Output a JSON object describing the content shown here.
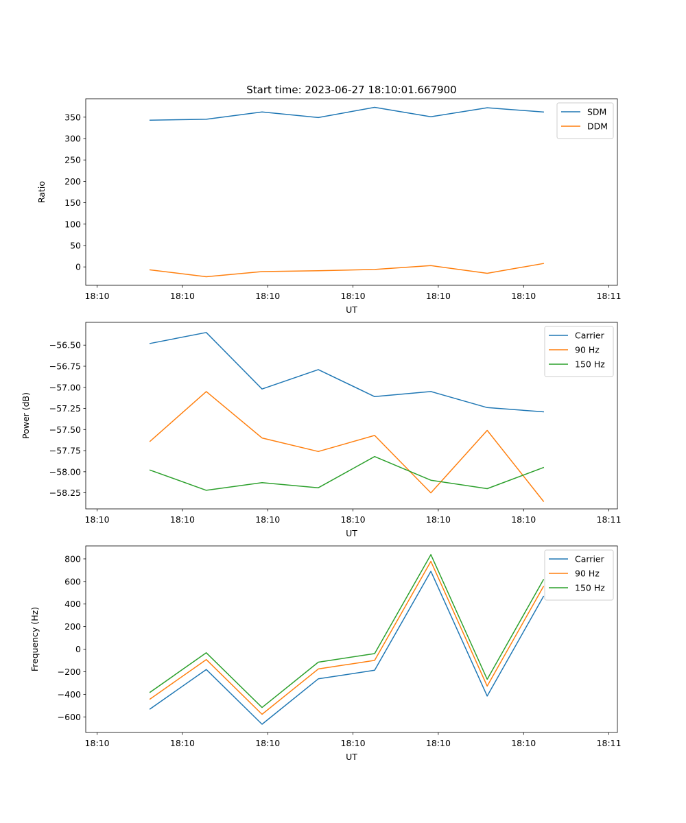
{
  "figure": {
    "title": "Start time: 2023-06-27 18:10:01.667900"
  },
  "chart_data": [
    {
      "type": "line",
      "title": "Start time: 2023-06-27 18:10:01.667900",
      "xlabel": "UT",
      "ylabel": "Ratio",
      "xlim": [
        0,
        9.35
      ],
      "xticks": [
        0.2,
        1.7,
        3.2,
        4.7,
        6.2,
        7.7,
        9.2
      ],
      "xtick_labels": [
        "18:10",
        "18:10",
        "18:10",
        "18:10",
        "18:10",
        "18:10",
        "18:11"
      ],
      "ylim": [
        -43,
        393
      ],
      "yticks": [
        0,
        50,
        100,
        150,
        200,
        250,
        300,
        350
      ],
      "ytick_labels": [
        "0",
        "50",
        "100",
        "150",
        "200",
        "250",
        "300",
        "350"
      ],
      "grid": false,
      "legend": "top-right",
      "x": [
        1.13,
        2.12,
        3.1,
        4.09,
        5.08,
        6.07,
        7.06,
        8.05
      ],
      "series": [
        {
          "name": "SDM",
          "color": "#1f77b4",
          "values": [
            343,
            345,
            362,
            349,
            373,
            351,
            372,
            362
          ]
        },
        {
          "name": "DDM",
          "color": "#ff7f0e",
          "values": [
            -7,
            -23,
            -11,
            -9,
            -6,
            3,
            -15,
            8
          ]
        }
      ]
    },
    {
      "type": "line",
      "xlabel": "UT",
      "ylabel": "Power (dB)",
      "xlim": [
        0,
        9.35
      ],
      "xticks": [
        0.2,
        1.7,
        3.2,
        4.7,
        6.2,
        7.7,
        9.2
      ],
      "xtick_labels": [
        "18:10",
        "18:10",
        "18:10",
        "18:10",
        "18:10",
        "18:10",
        "18:11"
      ],
      "ylim": [
        -58.44,
        -56.23
      ],
      "yticks": [
        -58.25,
        -58.0,
        -57.75,
        -57.5,
        -57.25,
        -57.0,
        -56.75,
        -56.5
      ],
      "ytick_labels": [
        "−58.25",
        "−58.00",
        "−57.75",
        "−57.50",
        "−57.25",
        "−57.00",
        "−56.75",
        "−56.50"
      ],
      "grid": false,
      "legend": "top-right",
      "x": [
        1.13,
        2.12,
        3.1,
        4.09,
        5.08,
        6.07,
        7.06,
        8.05
      ],
      "series": [
        {
          "name": "Carrier",
          "color": "#1f77b4",
          "values": [
            -56.48,
            -56.35,
            -57.02,
            -56.79,
            -57.11,
            -57.05,
            -57.24,
            -57.29
          ]
        },
        {
          "name": "90 Hz",
          "color": "#ff7f0e",
          "values": [
            -57.64,
            -57.05,
            -57.6,
            -57.76,
            -57.57,
            -58.25,
            -57.51,
            -58.35
          ]
        },
        {
          "name": "150 Hz",
          "color": "#2ca02c",
          "values": [
            -57.98,
            -58.22,
            -58.13,
            -58.19,
            -57.82,
            -58.1,
            -58.2,
            -57.95
          ]
        }
      ]
    },
    {
      "type": "line",
      "xlabel": "UT",
      "ylabel": "Frequency (Hz)",
      "xlim": [
        0,
        9.35
      ],
      "xticks": [
        0.2,
        1.7,
        3.2,
        4.7,
        6.2,
        7.7,
        9.2
      ],
      "xtick_labels": [
        "18:10",
        "18:10",
        "18:10",
        "18:10",
        "18:10",
        "18:10",
        "18:11"
      ],
      "ylim": [
        -738,
        915
      ],
      "yticks": [
        -600,
        -400,
        -200,
        0,
        200,
        400,
        600,
        800
      ],
      "ytick_labels": [
        "−600",
        "−400",
        "−200",
        "0",
        "200",
        "400",
        "600",
        "800"
      ],
      "grid": false,
      "legend": "top-right",
      "x": [
        1.13,
        2.12,
        3.1,
        4.09,
        5.08,
        6.07,
        7.06,
        8.05
      ],
      "series": [
        {
          "name": "Carrier",
          "color": "#1f77b4",
          "values": [
            -530,
            -180,
            -665,
            -263,
            -187,
            690,
            -415,
            468
          ]
        },
        {
          "name": "90 Hz",
          "color": "#ff7f0e",
          "values": [
            -442,
            -92,
            -577,
            -175,
            -99,
            778,
            -327,
            556
          ]
        },
        {
          "name": "150 Hz",
          "color": "#2ca02c",
          "values": [
            -382,
            -32,
            -517,
            -115,
            -39,
            838,
            -267,
            616
          ]
        }
      ]
    }
  ]
}
